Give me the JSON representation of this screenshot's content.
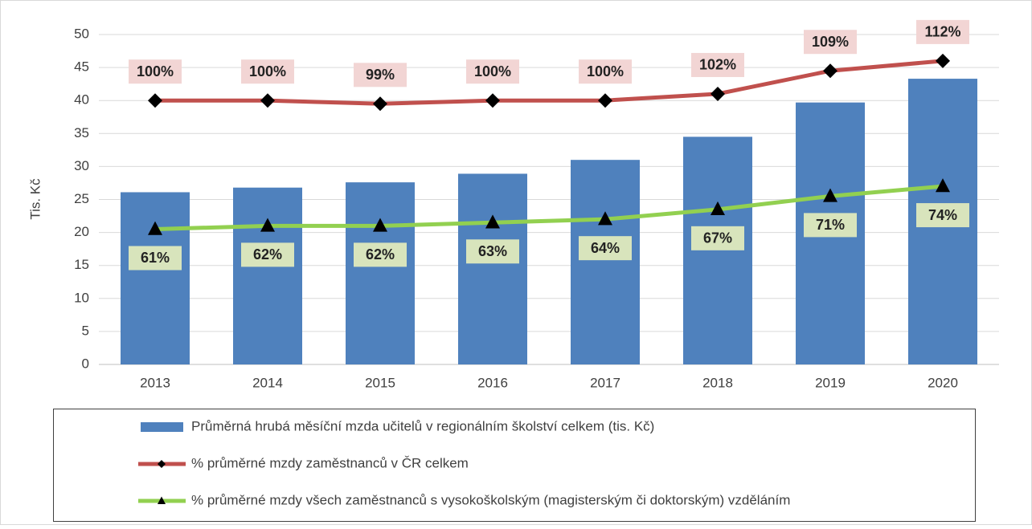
{
  "chart_data": {
    "type": "bar",
    "y_label": "Tis. Kč",
    "categories": [
      "2013",
      "2014",
      "2015",
      "2016",
      "2017",
      "2018",
      "2019",
      "2020"
    ],
    "ylim": [
      0,
      50
    ],
    "yticks": [
      0,
      5,
      10,
      15,
      20,
      25,
      30,
      35,
      40,
      45,
      50
    ],
    "y2lim": [
      20,
      120
    ],
    "grid": true,
    "legend": "bottom",
    "series": [
      {
        "name": "Průměrná hrubá měsíční mzda učitelů v regionálním školství celkem (tis. Kč)",
        "type": "bar",
        "color": "#4f81bd",
        "values": [
          26.1,
          26.8,
          27.6,
          28.9,
          31.0,
          34.5,
          39.7,
          43.3
        ]
      },
      {
        "name": "% průměrné mzdy zaměstnanců v ČR celkem",
        "type": "line",
        "axis": "y2",
        "color": "#c0504d",
        "marker": "diamond",
        "label_color": "#f2d5d4",
        "label_position": "above",
        "values": [
          100,
          100,
          99,
          100,
          100,
          102,
          109,
          112
        ],
        "value_labels": [
          "100%",
          "100%",
          "99%",
          "100%",
          "100%",
          "102%",
          "109%",
          "112%"
        ]
      },
      {
        "name": "% průměrné mzdy všech zaměstnanců s vysokoškolským (magisterským či doktorským) vzděláním",
        "type": "line",
        "axis": "y2",
        "color": "#92d050",
        "marker": "triangle",
        "label_color": "#d8e4bc",
        "label_position": "below",
        "values": [
          61,
          62,
          62,
          63,
          64,
          67,
          71,
          74
        ],
        "value_labels": [
          "61%",
          "62%",
          "62%",
          "63%",
          "64%",
          "67%",
          "71%",
          "74%"
        ]
      }
    ]
  }
}
